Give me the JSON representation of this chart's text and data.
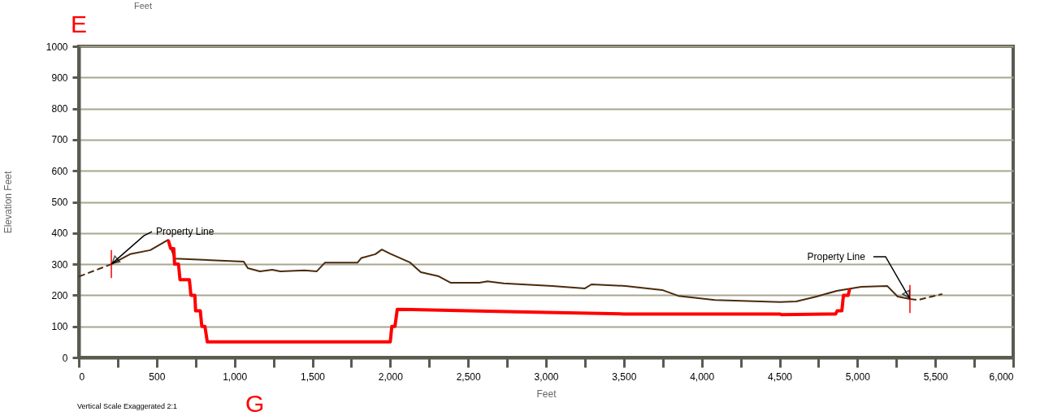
{
  "chart_data": {
    "type": "line",
    "xlabel": "Feet",
    "ylabel": "Elevation Feet",
    "xlim": [
      0,
      6000
    ],
    "ylim": [
      0,
      1000
    ],
    "xticks": [
      0,
      {
        "value": 250,
        "label": null
      },
      500,
      {
        "value": 750,
        "label": null
      },
      {
        "value": 1000,
        "label": "1,000"
      },
      {
        "value": 1250,
        "label": null
      },
      {
        "value": 1500,
        "label": "1,500"
      },
      {
        "value": 1750,
        "label": null
      },
      {
        "value": 2000,
        "label": "2,000"
      },
      {
        "value": 2250,
        "label": null
      },
      {
        "value": 2500,
        "label": "2,500"
      },
      {
        "value": 2750,
        "label": null
      },
      {
        "value": 3000,
        "label": "3,000"
      },
      {
        "value": 3250,
        "label": null
      },
      {
        "value": 3500,
        "label": "3,500"
      },
      {
        "value": 3750,
        "label": null
      },
      {
        "value": 4000,
        "label": "4,000"
      },
      {
        "value": 4250,
        "label": null
      },
      {
        "value": 4500,
        "label": "4,500"
      },
      {
        "value": 4750,
        "label": null
      },
      {
        "value": 5000,
        "label": "5,000"
      },
      {
        "value": 5250,
        "label": null
      },
      {
        "value": 5500,
        "label": "5,500"
      },
      {
        "value": 5750,
        "label": null
      },
      {
        "value": 6000,
        "label": "6,000"
      }
    ],
    "yticks": [
      0,
      100,
      200,
      300,
      400,
      500,
      600,
      700,
      800,
      900,
      1000
    ],
    "grid": "y",
    "legend": false,
    "series": [
      {
        "color": "#4b2a0c",
        "line_style": "dashed",
        "x": [
          0,
          209
        ],
        "values": [
          260,
          300
        ]
      },
      {
        "color": "#4b2a0c",
        "line_style": "solid",
        "x": [
          209,
          329,
          459,
          574,
          615,
          1059,
          1085,
          1163,
          1242,
          1294,
          1450,
          1528,
          1581,
          1790,
          1815,
          1904,
          1946,
          1998,
          2128,
          2196,
          2311,
          2389,
          2572,
          2624,
          2728,
          3041,
          3250,
          3292,
          3511,
          3746,
          3850,
          4085,
          4502,
          4607,
          4737,
          4867,
          5024,
          5191,
          5258,
          5337
        ],
        "values": [
          300,
          332,
          345,
          378,
          318,
          308,
          287,
          277,
          282,
          277,
          280,
          277,
          305,
          305,
          320,
          332,
          347,
          334,
          305,
          274,
          261,
          240,
          240,
          245,
          238,
          230,
          222,
          235,
          230,
          217,
          198,
          185,
          178,
          180,
          196,
          214,
          227,
          230,
          196,
          188
        ]
      },
      {
        "color": "#4b2a0c",
        "line_style": "dashed",
        "x": [
          5337,
          5389,
          5545
        ],
        "values": [
          188,
          185,
          204
        ]
      },
      {
        "color": "#ff0000",
        "line_style": "solid",
        "x": [
          209,
          209
        ],
        "values": [
          255,
          345
        ]
      },
      {
        "color": "#ff0000",
        "line_style": "solid",
        "x": [
          5337,
          5337
        ],
        "values": [
          143,
          233
        ]
      },
      {
        "color": "#ff0000",
        "line_style": "solid",
        "x": [
          574,
          590,
          610,
          615,
          640,
          650,
          710,
          720,
          745,
          750,
          780,
          790,
          810,
          825,
          2000,
          2010,
          2030,
          2045,
          2500,
          3000,
          3500,
          4500,
          4510,
          4860,
          4870,
          4900,
          4910,
          4940,
          4950
        ],
        "values": [
          378,
          350,
          350,
          300,
          300,
          250,
          250,
          200,
          200,
          150,
          150,
          100,
          100,
          50,
          50,
          100,
          100,
          155,
          150,
          145,
          140,
          140,
          138,
          140,
          150,
          150,
          200,
          200,
          220
        ]
      }
    ],
    "annotations": [
      "E",
      "Feet",
      "Vertical Scale Exaggerated 2:1",
      "G",
      {
        "text": "Property Line",
        "x": 209,
        "y": 300
      },
      {
        "text": "Property Line",
        "x": 5337,
        "y": 188
      }
    ]
  }
}
